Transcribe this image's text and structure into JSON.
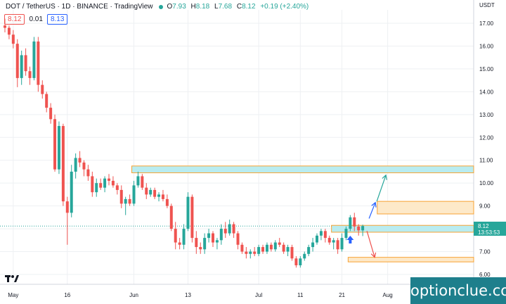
{
  "header": {
    "symbol": "DOT / TetherUS · 1D · BINANCE · TradingView",
    "o_label": "O",
    "o": "7.93",
    "h_label": "H",
    "h": "8.18",
    "l_label": "L",
    "l": "7.68",
    "c_label": "C",
    "c": "8.12",
    "change": "+0.19 (+2.40%)",
    "sell": "8.12",
    "spread": "0.01",
    "buy": "8.13"
  },
  "currency": "USDT",
  "price_tag": {
    "price": "8.12",
    "countdown": "13:53:53"
  },
  "logo_text": "optionclue.com",
  "colors": {
    "up": "#26a69a",
    "down": "#ef5350",
    "zone_blue": "#b9ecf0",
    "zone_orange": "#fde9c9",
    "zone_border": "#f7a233",
    "arrow_up": "#2962ff",
    "arrow_target": "#26a69a",
    "arrow_down": "#ef5350"
  },
  "chart_data": {
    "type": "candlestick",
    "ylim": [
      5.6,
      17.6
    ],
    "y_ticks": [
      "17.00",
      "16.00",
      "15.00",
      "14.00",
      "13.00",
      "12.00",
      "11.00",
      "10.00",
      "9.00",
      "8.00",
      "7.00",
      "6.00"
    ],
    "x_ticks": [
      {
        "label": "May",
        "i": 2
      },
      {
        "label": "16",
        "i": 15
      },
      {
        "label": "Jun",
        "i": 31
      },
      {
        "label": "13",
        "i": 44
      },
      {
        "label": "Jul",
        "i": 61
      },
      {
        "label": "11",
        "i": 71
      },
      {
        "label": "21",
        "i": 81
      },
      {
        "label": "Aug",
        "i": 92
      }
    ],
    "candles": [
      [
        16.9,
        17.2,
        16.6,
        16.8
      ],
      [
        16.8,
        16.9,
        16.3,
        16.5
      ],
      [
        16.5,
        16.7,
        15.9,
        16.1
      ],
      [
        16.1,
        16.3,
        14.2,
        14.6
      ],
      [
        14.6,
        15.8,
        14.3,
        15.6
      ],
      [
        15.6,
        15.9,
        14.7,
        14.9
      ],
      [
        14.9,
        15.1,
        14.3,
        14.6
      ],
      [
        14.6,
        16.4,
        14.5,
        16.2
      ],
      [
        16.2,
        16.4,
        14.0,
        14.3
      ],
      [
        14.3,
        14.5,
        13.7,
        13.9
      ],
      [
        13.9,
        14.0,
        13.1,
        13.3
      ],
      [
        13.3,
        13.5,
        12.6,
        12.8
      ],
      [
        12.8,
        13.0,
        10.5,
        10.6
      ],
      [
        10.6,
        12.7,
        10.4,
        12.5
      ],
      [
        12.5,
        12.6,
        9.0,
        9.2
      ],
      [
        9.2,
        9.4,
        7.3,
        8.7
      ],
      [
        8.7,
        10.8,
        8.5,
        10.5
      ],
      [
        10.5,
        11.3,
        10.2,
        11.1
      ],
      [
        11.1,
        11.4,
        10.7,
        10.9
      ],
      [
        10.9,
        11.0,
        10.3,
        10.6
      ],
      [
        10.6,
        10.8,
        10.1,
        10.3
      ],
      [
        10.3,
        10.5,
        9.4,
        9.6
      ],
      [
        9.6,
        10.2,
        9.4,
        10.0
      ],
      [
        10.0,
        10.2,
        9.7,
        9.8
      ],
      [
        9.8,
        10.3,
        9.6,
        10.2
      ],
      [
        10.2,
        10.4,
        9.9,
        10.1
      ],
      [
        10.1,
        10.3,
        9.8,
        9.9
      ],
      [
        9.9,
        10.0,
        9.5,
        9.7
      ],
      [
        9.7,
        9.9,
        8.9,
        9.1
      ],
      [
        9.1,
        9.4,
        8.6,
        9.3
      ],
      [
        9.3,
        9.5,
        9.0,
        9.1
      ],
      [
        9.1,
        10.1,
        9.0,
        9.9
      ],
      [
        9.9,
        10.5,
        9.8,
        10.3
      ],
      [
        10.3,
        10.4,
        9.7,
        9.8
      ],
      [
        9.8,
        10.0,
        9.3,
        9.5
      ],
      [
        9.5,
        9.8,
        9.4,
        9.7
      ],
      [
        9.7,
        9.8,
        9.3,
        9.4
      ],
      [
        9.4,
        9.6,
        9.2,
        9.5
      ],
      [
        9.5,
        9.7,
        9.2,
        9.3
      ],
      [
        9.3,
        9.5,
        8.9,
        9.0
      ],
      [
        9.0,
        9.1,
        7.9,
        8.0
      ],
      [
        8.0,
        8.3,
        7.1,
        7.4
      ],
      [
        7.4,
        7.6,
        7.1,
        7.3
      ],
      [
        7.3,
        8.2,
        7.1,
        8.0
      ],
      [
        8.0,
        9.6,
        7.9,
        9.4
      ],
      [
        9.4,
        9.5,
        7.4,
        7.6
      ],
      [
        7.6,
        7.9,
        6.9,
        7.2
      ],
      [
        7.2,
        7.4,
        6.9,
        7.1
      ],
      [
        7.1,
        7.8,
        6.9,
        7.6
      ],
      [
        7.6,
        8.0,
        7.4,
        7.8
      ],
      [
        7.8,
        7.9,
        7.2,
        7.4
      ],
      [
        7.4,
        7.6,
        7.1,
        7.5
      ],
      [
        7.5,
        8.2,
        7.3,
        8.0
      ],
      [
        8.0,
        8.3,
        7.6,
        7.8
      ],
      [
        7.8,
        8.4,
        7.7,
        8.2
      ],
      [
        8.2,
        8.3,
        7.6,
        7.8
      ],
      [
        7.8,
        7.9,
        7.1,
        7.3
      ],
      [
        7.3,
        7.4,
        6.9,
        7.0
      ],
      [
        7.0,
        7.2,
        6.7,
        6.9
      ],
      [
        6.9,
        7.1,
        6.7,
        7.0
      ],
      [
        7.0,
        7.2,
        6.8,
        6.9
      ],
      [
        6.9,
        7.3,
        6.8,
        7.2
      ],
      [
        7.2,
        7.3,
        6.9,
        7.0
      ],
      [
        7.0,
        7.4,
        6.9,
        7.3
      ],
      [
        7.3,
        7.4,
        7.0,
        7.1
      ],
      [
        7.1,
        7.5,
        7.0,
        7.4
      ],
      [
        7.4,
        7.6,
        7.2,
        7.3
      ],
      [
        7.3,
        7.4,
        6.9,
        7.0
      ],
      [
        7.0,
        7.3,
        6.8,
        7.2
      ],
      [
        7.2,
        7.3,
        6.6,
        6.7
      ],
      [
        6.7,
        6.8,
        6.3,
        6.4
      ],
      [
        6.4,
        6.8,
        6.3,
        6.7
      ],
      [
        6.7,
        7.0,
        6.6,
        6.9
      ],
      [
        6.9,
        7.3,
        6.8,
        7.2
      ],
      [
        7.2,
        7.6,
        7.0,
        7.4
      ],
      [
        7.4,
        7.8,
        7.3,
        7.7
      ],
      [
        7.7,
        8.0,
        7.5,
        7.9
      ],
      [
        7.9,
        8.0,
        7.4,
        7.6
      ],
      [
        7.6,
        7.7,
        7.3,
        7.4
      ],
      [
        7.4,
        7.6,
        7.1,
        7.5
      ],
      [
        7.5,
        7.6,
        6.9,
        7.1
      ],
      [
        7.1,
        7.8,
        7.0,
        7.6
      ],
      [
        7.6,
        8.1,
        7.5,
        8.0
      ],
      [
        8.0,
        8.6,
        7.9,
        8.5
      ],
      [
        8.5,
        8.7,
        7.9,
        8.1
      ],
      [
        8.1,
        8.2,
        7.7,
        7.93
      ],
      [
        7.93,
        8.18,
        7.68,
        8.12
      ]
    ],
    "zones": [
      {
        "name": "resistance-10.5",
        "y": [
          10.45,
          10.75
        ],
        "from": 31,
        "fill": "blue"
      },
      {
        "name": "resistance-8.9",
        "y": [
          8.65,
          9.2
        ],
        "from": 90,
        "fill": "orange"
      },
      {
        "name": "current-zone-8",
        "y": [
          7.85,
          8.15
        ],
        "from": 79,
        "fill": "blue"
      },
      {
        "name": "support-6.6",
        "y": [
          6.55,
          6.75
        ],
        "from": 83,
        "fill": "orange"
      }
    ]
  }
}
